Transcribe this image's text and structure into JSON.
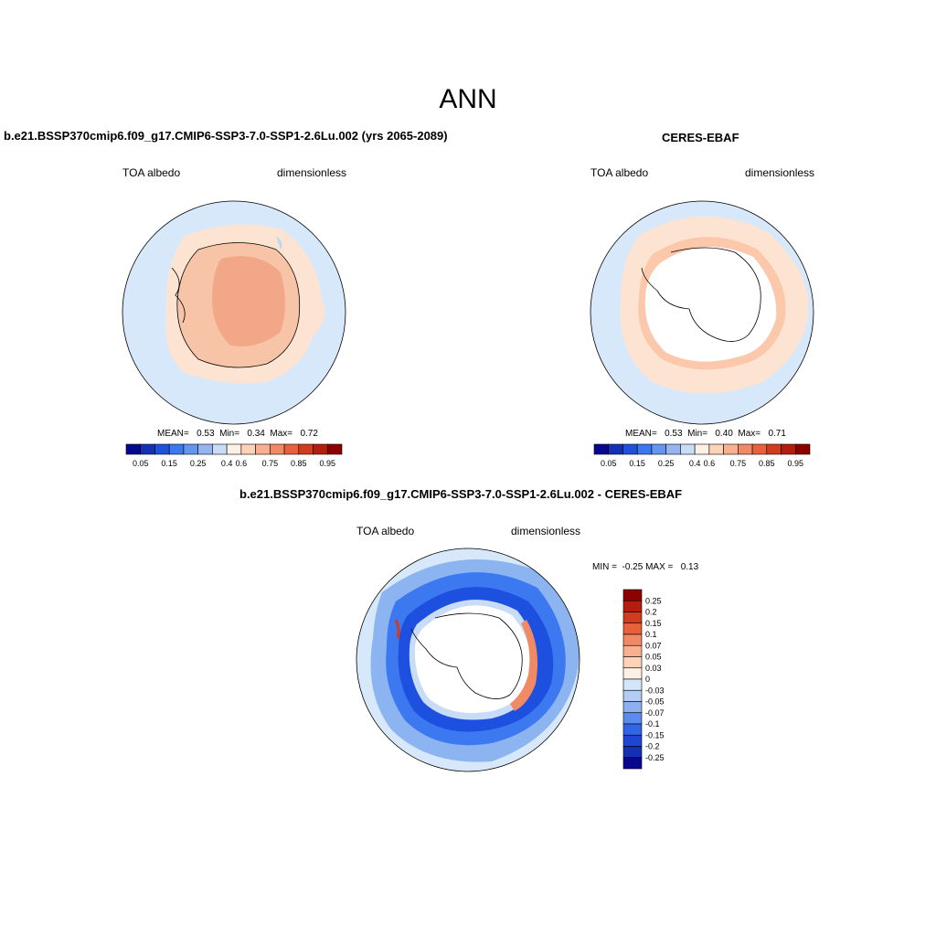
{
  "title": "ANN",
  "panels": [
    {
      "title": "b.e21.BSSP370cmip6.f09_g17.CMIP6-SSP3-7.0-SSP1-2.6Lu.002 (yrs 2065-2089)",
      "left_label": "TOA albedo",
      "right_label": "dimensionless",
      "stats": "MEAN=   0.53  Min=   0.34  Max=   0.72"
    },
    {
      "title": "CERES-EBAF",
      "left_label": "TOA albedo",
      "right_label": "dimensionless",
      "stats": "MEAN=   0.53  Min=   0.40  Max=   0.71"
    },
    {
      "title": "b.e21.BSSP370cmip6.f09_g17.CMIP6-SSP3-7.0-SSP1-2.6Lu.002 - CERES-EBAF",
      "left_label": "TOA albedo",
      "right_label": "dimensionless",
      "stats": "MIN =  -0.25 MAX =   0.13"
    }
  ],
  "colorbar_horizontal": {
    "colors": [
      "#08088e",
      "#1430b4",
      "#2050dc",
      "#3c78f0",
      "#6496f0",
      "#96b4f0",
      "#c8dcf8",
      "#fff0e6",
      "#fcd2b8",
      "#f8b090",
      "#f08a64",
      "#e8603c",
      "#d23c1e",
      "#b41e0c",
      "#8c0000"
    ],
    "tick_labels": [
      "0.05",
      "0.15",
      "0.25",
      "0.4",
      "0.6",
      "0.75",
      "0.85",
      "0.95"
    ]
  },
  "colorbar_vertical": {
    "colors": [
      "#8c0000",
      "#b41e0c",
      "#d23c1e",
      "#e8603c",
      "#f08a64",
      "#f8b090",
      "#fcd2b8",
      "#fff0e6",
      "#d6e6fa",
      "#b4cdf5",
      "#8cb0f0",
      "#5a8cf0",
      "#3264e6",
      "#1e46d2",
      "#1430b4",
      "#08088e"
    ],
    "tick_labels": [
      "0.25",
      "0.2",
      "0.15",
      "0.1",
      "0.07",
      "0.05",
      "0.03",
      "0",
      "-0.03",
      "-0.05",
      "-0.07",
      "-0.1",
      "-0.15",
      "-0.2",
      "-0.25"
    ]
  },
  "map_colors": {
    "ocean_light": "#d6e8fa",
    "land_high": "#f2a888",
    "land_mid": "#f8c4a8",
    "ring_light": "#fde4d2",
    "ring_mid": "#fbc8ac",
    "diff_dark": "#1e50e0",
    "diff_mid": "#3c78f0",
    "diff_light": "#8cb4f0",
    "diff_pale": "#c8dcf8",
    "diff_red": "#f08a64"
  }
}
